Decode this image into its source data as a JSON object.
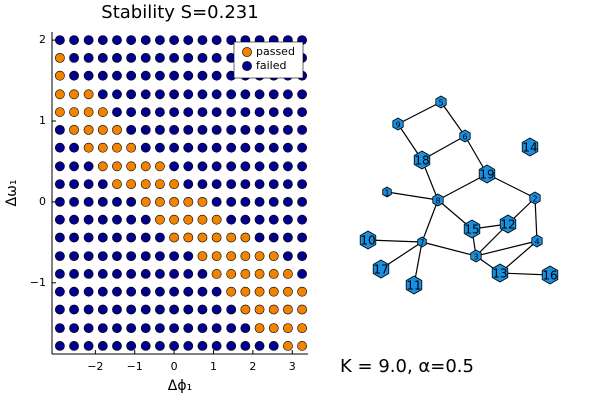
{
  "chart_data": {
    "type": "scatter",
    "title": "Stability S=0.231",
    "x_label": "Δϕ₁",
    "y_label": "Δω₁",
    "xlim": [
      -3.1,
      3.4
    ],
    "ylim": [
      -1.88,
      2.1
    ],
    "xticks": [
      {
        "value": -2,
        "label": "−2"
      },
      {
        "value": -1,
        "label": "−1"
      },
      0,
      1,
      2,
      3
    ],
    "yticks": [
      {
        "value": -1,
        "label": "−1"
      },
      0,
      1,
      2
    ],
    "grid": false,
    "legend": "top-right",
    "series": [
      {
        "name": "passed",
        "color": "#f28300",
        "x": [
          -2.9,
          -2.9,
          -2.9,
          -2.54,
          -2.17,
          -2.9,
          -2.54,
          -2.17,
          -1.81,
          -2.54,
          -2.17,
          -1.81,
          -1.45,
          -2.17,
          -1.81,
          -1.45,
          -1.09,
          -1.81,
          -1.45,
          -1.09,
          -0.72,
          -0.36,
          -1.45,
          -1.09,
          -0.72,
          -0.36,
          0,
          -0.72,
          -0.36,
          0,
          0.36,
          0.72,
          -0.36,
          0,
          0.36,
          0.72,
          1.08,
          0,
          0.36,
          0.72,
          1.08,
          1.45,
          1.81,
          0.72,
          1.08,
          1.45,
          1.81,
          2.17,
          2.53,
          1.08,
          1.45,
          1.81,
          2.17,
          2.53,
          2.89,
          1.45,
          1.81,
          2.17,
          2.53,
          2.89,
          3.25,
          1.81,
          2.17,
          2.53,
          2.89,
          3.25,
          2.17,
          2.53,
          2.89,
          3.25,
          2.89,
          3.25
        ],
        "y": [
          1.78,
          1.56,
          1.33,
          1.33,
          1.33,
          1.11,
          1.11,
          1.11,
          1.11,
          0.89,
          0.89,
          0.89,
          0.89,
          0.67,
          0.67,
          0.67,
          0.67,
          0.44,
          0.44,
          0.44,
          0.44,
          0.44,
          0.22,
          0.22,
          0.22,
          0.22,
          0.22,
          0,
          0,
          0,
          0,
          0,
          -0.22,
          -0.22,
          -0.22,
          -0.22,
          -0.22,
          -0.44,
          -0.44,
          -0.44,
          -0.44,
          -0.44,
          -0.44,
          -0.67,
          -0.67,
          -0.67,
          -0.67,
          -0.67,
          -0.67,
          -0.89,
          -0.89,
          -0.89,
          -0.89,
          -0.89,
          -0.89,
          -1.11,
          -1.11,
          -1.11,
          -1.11,
          -1.11,
          -1.11,
          -1.33,
          -1.33,
          -1.33,
          -1.33,
          -1.33,
          -1.56,
          -1.56,
          -1.56,
          -1.56,
          -1.78,
          -1.78
        ]
      },
      {
        "name": "failed",
        "color": "#00008b",
        "x": [
          -2.9,
          -2.54,
          -2.17,
          -1.81,
          -1.45,
          -1.09,
          -0.72,
          -0.36,
          0,
          0.36,
          0.72,
          1.08,
          1.45,
          1.81,
          2.17,
          2.53,
          2.89,
          3.25,
          -2.54,
          -2.17,
          -1.81,
          -1.45,
          -1.09,
          -0.72,
          -0.36,
          0,
          0.36,
          0.72,
          1.08,
          1.45,
          1.81,
          2.17,
          2.53,
          2.89,
          3.25,
          -2.54,
          -2.17,
          -1.81,
          -1.45,
          -1.09,
          -0.72,
          -0.36,
          0,
          0.36,
          0.72,
          1.08,
          1.45,
          1.81,
          2.17,
          2.53,
          2.89,
          3.25,
          -1.81,
          -1.45,
          -1.09,
          -0.72,
          -0.36,
          0,
          0.36,
          0.72,
          1.08,
          1.45,
          1.81,
          2.17,
          2.53,
          2.89,
          3.25,
          -1.45,
          -1.09,
          -0.72,
          -0.36,
          0,
          0.36,
          0.72,
          1.08,
          1.45,
          1.81,
          2.17,
          2.53,
          2.89,
          3.25,
          -2.9,
          -1.09,
          -0.72,
          -0.36,
          0,
          0.36,
          0.72,
          1.08,
          1.45,
          1.81,
          2.17,
          2.53,
          2.89,
          3.25,
          -2.9,
          -2.54,
          -0.72,
          -0.36,
          0,
          0.36,
          0.72,
          1.08,
          1.45,
          1.81,
          2.17,
          2.53,
          2.89,
          3.25,
          -2.9,
          -2.54,
          -2.17,
          0,
          0.36,
          0.72,
          1.08,
          1.45,
          1.81,
          2.17,
          2.53,
          2.89,
          3.25,
          -2.9,
          -2.54,
          -2.17,
          -1.81,
          0.36,
          0.72,
          1.08,
          1.45,
          1.81,
          2.17,
          2.53,
          2.89,
          3.25,
          -2.9,
          -2.54,
          -2.17,
          -1.81,
          -1.45,
          -1.09,
          1.08,
          1.45,
          1.81,
          2.17,
          2.53,
          2.89,
          3.25,
          -2.9,
          -2.54,
          -2.17,
          -1.81,
          -1.45,
          -1.09,
          -0.72,
          1.45,
          1.81,
          2.17,
          2.53,
          2.89,
          3.25,
          -2.9,
          -2.54,
          -2.17,
          -1.81,
          -1.45,
          -1.09,
          -0.72,
          -0.36,
          2.17,
          2.53,
          2.89,
          3.25,
          -2.9,
          -2.54,
          -2.17,
          -1.81,
          -1.45,
          -1.09,
          -0.72,
          -0.36,
          0,
          0.36,
          2.89,
          3.25,
          -2.9,
          -2.54,
          -2.17,
          -1.81,
          -1.45,
          -1.09,
          -0.72,
          -0.36,
          0,
          0.36,
          0.72,
          3.25,
          -2.9,
          -2.54,
          -2.17,
          -1.81,
          -1.45,
          -1.09,
          -0.72,
          -0.36,
          0,
          0.36,
          0.72,
          1.08,
          -2.9,
          -2.54,
          -2.17,
          -1.81,
          -1.45,
          -1.09,
          -0.72,
          -0.36,
          0,
          0.36,
          0.72,
          1.08,
          1.45,
          -2.9,
          -2.54,
          -2.17,
          -1.81,
          -1.45,
          -1.09,
          -0.72,
          -0.36,
          0,
          0.36,
          0.72,
          1.08,
          1.45,
          1.81,
          -2.9,
          -2.54,
          -2.17,
          -1.81,
          -1.45,
          -1.09,
          -0.72,
          -0.36,
          0,
          0.36,
          0.72,
          1.08,
          1.45,
          1.81,
          2.17,
          2.53
        ],
        "y": [
          2,
          2,
          2,
          2,
          2,
          2,
          2,
          2,
          2,
          2,
          2,
          2,
          2,
          2,
          2,
          2,
          2,
          2,
          1.78,
          1.78,
          1.78,
          1.78,
          1.78,
          1.78,
          1.78,
          1.78,
          1.78,
          1.78,
          1.78,
          1.78,
          1.78,
          1.78,
          1.78,
          1.78,
          1.78,
          1.56,
          1.56,
          1.56,
          1.56,
          1.56,
          1.56,
          1.56,
          1.56,
          1.56,
          1.56,
          1.56,
          1.56,
          1.56,
          1.56,
          1.56,
          1.56,
          1.56,
          1.33,
          1.33,
          1.33,
          1.33,
          1.33,
          1.33,
          1.33,
          1.33,
          1.33,
          1.33,
          1.33,
          1.33,
          1.33,
          1.33,
          1.33,
          1.11,
          1.11,
          1.11,
          1.11,
          1.11,
          1.11,
          1.11,
          1.11,
          1.11,
          1.11,
          1.11,
          1.11,
          1.11,
          1.11,
          0.89,
          0.89,
          0.89,
          0.89,
          0.89,
          0.89,
          0.89,
          0.89,
          0.89,
          0.89,
          0.89,
          0.89,
          0.89,
          0.89,
          0.67,
          0.67,
          0.67,
          0.67,
          0.67,
          0.67,
          0.67,
          0.67,
          0.67,
          0.67,
          0.67,
          0.67,
          0.67,
          0.67,
          0.44,
          0.44,
          0.44,
          0.44,
          0.44,
          0.44,
          0.44,
          0.44,
          0.44,
          0.44,
          0.44,
          0.44,
          0.44,
          0.22,
          0.22,
          0.22,
          0.22,
          0.22,
          0.22,
          0.22,
          0.22,
          0.22,
          0.22,
          0.22,
          0.22,
          0.22,
          0,
          0,
          0,
          0,
          0,
          0,
          0,
          0,
          0,
          0,
          0,
          0,
          0,
          -0.22,
          -0.22,
          -0.22,
          -0.22,
          -0.22,
          -0.22,
          -0.22,
          -0.22,
          -0.22,
          -0.22,
          -0.22,
          -0.22,
          -0.22,
          -0.44,
          -0.44,
          -0.44,
          -0.44,
          -0.44,
          -0.44,
          -0.44,
          -0.44,
          -0.44,
          -0.44,
          -0.44,
          -0.44,
          -0.67,
          -0.67,
          -0.67,
          -0.67,
          -0.67,
          -0.67,
          -0.67,
          -0.67,
          -0.67,
          -0.67,
          -0.67,
          -0.67,
          -0.89,
          -0.89,
          -0.89,
          -0.89,
          -0.89,
          -0.89,
          -0.89,
          -0.89,
          -0.89,
          -0.89,
          -0.89,
          -0.89,
          -1.11,
          -1.11,
          -1.11,
          -1.11,
          -1.11,
          -1.11,
          -1.11,
          -1.11,
          -1.11,
          -1.11,
          -1.11,
          -1.11,
          -1.33,
          -1.33,
          -1.33,
          -1.33,
          -1.33,
          -1.33,
          -1.33,
          -1.33,
          -1.33,
          -1.33,
          -1.33,
          -1.33,
          -1.33,
          -1.56,
          -1.56,
          -1.56,
          -1.56,
          -1.56,
          -1.56,
          -1.56,
          -1.56,
          -1.56,
          -1.56,
          -1.56,
          -1.56,
          -1.56,
          -1.56,
          -1.78,
          -1.78,
          -1.78,
          -1.78,
          -1.78,
          -1.78,
          -1.78,
          -1.78,
          -1.78,
          -1.78,
          -1.78,
          -1.78,
          -1.78,
          -1.78,
          -1.78,
          -1.78
        ]
      }
    ]
  },
  "network": {
    "nodes": [
      {
        "label": "1"
      },
      {
        "label": "2"
      },
      {
        "label": "3"
      },
      {
        "label": "4"
      },
      {
        "label": "5"
      },
      {
        "label": "6"
      },
      {
        "label": "7"
      },
      {
        "label": "8"
      },
      {
        "label": "9"
      },
      {
        "label": "10"
      },
      {
        "label": "11"
      },
      {
        "label": "12"
      },
      {
        "label": "13"
      },
      {
        "label": "14"
      },
      {
        "label": "15"
      },
      {
        "label": "16"
      },
      {
        "label": "17"
      },
      {
        "label": "18"
      },
      {
        "label": "19"
      }
    ],
    "annotation": "K = 9.0, α=0.5"
  }
}
